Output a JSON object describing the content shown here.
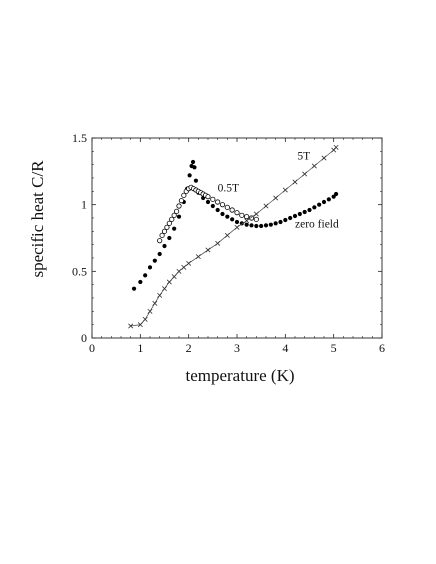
{
  "chart_data": {
    "type": "scatter",
    "xlabel": "temperature (K)",
    "ylabel": "specific heat C/R",
    "xlim": [
      0,
      6
    ],
    "ylim": [
      0,
      1.5
    ],
    "xticks": [
      "0",
      "1",
      "2",
      "3",
      "4",
      "5",
      "6"
    ],
    "yticks": [
      "0",
      "0.5",
      "1",
      "1.5"
    ],
    "grid": false,
    "series": [
      {
        "name": "zero field",
        "marker": "filled-circle",
        "connected": false,
        "points": [
          [
            0.87,
            0.37
          ],
          [
            1.0,
            0.42
          ],
          [
            1.1,
            0.47
          ],
          [
            1.2,
            0.53
          ],
          [
            1.3,
            0.58
          ],
          [
            1.4,
            0.63
          ],
          [
            1.5,
            0.69
          ],
          [
            1.6,
            0.75
          ],
          [
            1.7,
            0.82
          ],
          [
            1.8,
            0.91
          ],
          [
            1.9,
            1.02
          ],
          [
            1.97,
            1.12
          ],
          [
            2.02,
            1.22
          ],
          [
            2.06,
            1.29
          ],
          [
            2.09,
            1.32
          ],
          [
            2.12,
            1.28
          ],
          [
            2.15,
            1.18
          ],
          [
            2.2,
            1.09
          ],
          [
            2.3,
            1.05
          ],
          [
            2.4,
            1.02
          ],
          [
            2.5,
            0.99
          ],
          [
            2.6,
            0.96
          ],
          [
            2.7,
            0.93
          ],
          [
            2.8,
            0.91
          ],
          [
            2.9,
            0.89
          ],
          [
            3.0,
            0.87
          ],
          [
            3.1,
            0.86
          ],
          [
            3.2,
            0.85
          ],
          [
            3.3,
            0.845
          ],
          [
            3.4,
            0.84
          ],
          [
            3.5,
            0.84
          ],
          [
            3.6,
            0.845
          ],
          [
            3.7,
            0.85
          ],
          [
            3.8,
            0.86
          ],
          [
            3.9,
            0.87
          ],
          [
            4.0,
            0.885
          ],
          [
            4.1,
            0.9
          ],
          [
            4.2,
            0.915
          ],
          [
            4.3,
            0.93
          ],
          [
            4.4,
            0.945
          ],
          [
            4.5,
            0.96
          ],
          [
            4.6,
            0.98
          ],
          [
            4.7,
            1.0
          ],
          [
            4.8,
            1.02
          ],
          [
            4.9,
            1.04
          ],
          [
            5.0,
            1.06
          ],
          [
            5.05,
            1.08
          ]
        ]
      },
      {
        "name": "0.5T",
        "marker": "open-circle",
        "connected": false,
        "points": [
          [
            1.4,
            0.73
          ],
          [
            1.45,
            0.77
          ],
          [
            1.5,
            0.8
          ],
          [
            1.55,
            0.83
          ],
          [
            1.6,
            0.86
          ],
          [
            1.65,
            0.89
          ],
          [
            1.7,
            0.92
          ],
          [
            1.75,
            0.95
          ],
          [
            1.8,
            0.99
          ],
          [
            1.85,
            1.03
          ],
          [
            1.9,
            1.07
          ],
          [
            1.95,
            1.1
          ],
          [
            2.0,
            1.12
          ],
          [
            2.05,
            1.13
          ],
          [
            2.1,
            1.12
          ],
          [
            2.15,
            1.11
          ],
          [
            2.2,
            1.1
          ],
          [
            2.25,
            1.09
          ],
          [
            2.3,
            1.08
          ],
          [
            2.35,
            1.07
          ],
          [
            2.4,
            1.06
          ],
          [
            2.5,
            1.04
          ],
          [
            2.6,
            1.02
          ],
          [
            2.7,
            1.0
          ],
          [
            2.8,
            0.98
          ],
          [
            2.9,
            0.96
          ],
          [
            3.0,
            0.94
          ],
          [
            3.1,
            0.92
          ],
          [
            3.2,
            0.91
          ],
          [
            3.3,
            0.9
          ],
          [
            3.4,
            0.89
          ]
        ]
      },
      {
        "name": "5T",
        "marker": "cross-line",
        "connected": true,
        "points": [
          [
            0.8,
            0.09
          ],
          [
            1.0,
            0.1
          ],
          [
            1.1,
            0.14
          ],
          [
            1.2,
            0.2
          ],
          [
            1.3,
            0.26
          ],
          [
            1.4,
            0.32
          ],
          [
            1.5,
            0.37
          ],
          [
            1.6,
            0.42
          ],
          [
            1.7,
            0.46
          ],
          [
            1.8,
            0.5
          ],
          [
            1.9,
            0.53
          ],
          [
            2.0,
            0.56
          ],
          [
            2.2,
            0.61
          ],
          [
            2.4,
            0.66
          ],
          [
            2.6,
            0.71
          ],
          [
            2.8,
            0.77
          ],
          [
            3.0,
            0.83
          ],
          [
            3.2,
            0.88
          ],
          [
            3.4,
            0.93
          ],
          [
            3.6,
            0.99
          ],
          [
            3.8,
            1.05
          ],
          [
            4.0,
            1.11
          ],
          [
            4.2,
            1.17
          ],
          [
            4.4,
            1.23
          ],
          [
            4.6,
            1.29
          ],
          [
            4.8,
            1.35
          ],
          [
            5.0,
            1.41
          ],
          [
            5.05,
            1.43
          ]
        ]
      }
    ],
    "annotations": [
      {
        "text": "5T",
        "at": [
          4.25,
          1.34
        ]
      },
      {
        "text": "0.5T",
        "at": [
          2.6,
          1.1
        ]
      },
      {
        "text": "zero field",
        "at": [
          4.2,
          0.83
        ]
      }
    ]
  }
}
